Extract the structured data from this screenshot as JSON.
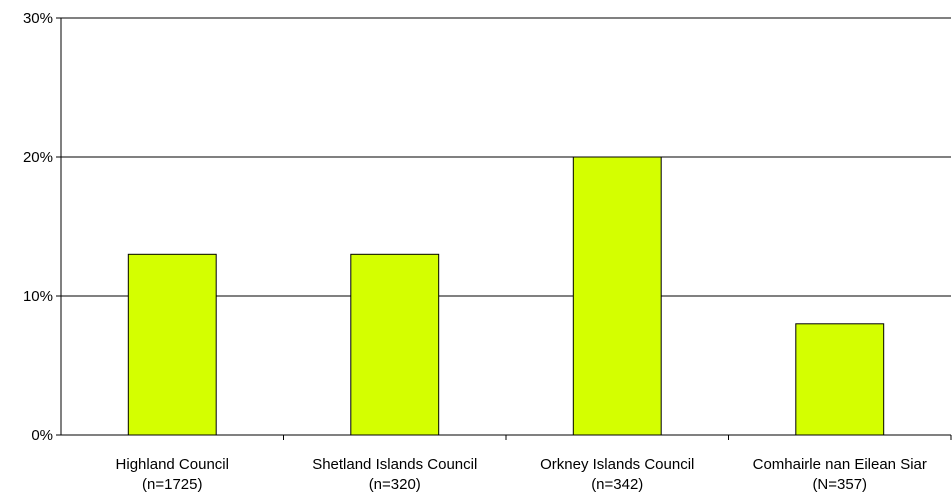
{
  "chart_data": {
    "type": "bar",
    "categories": [
      [
        "Highland Council",
        "(n=1725)"
      ],
      [
        "Shetland Islands Council",
        "(n=320)"
      ],
      [
        "Orkney Islands Council",
        "(n=342)"
      ],
      [
        "Comhairle nan Eilean Siar",
        "(N=357)"
      ]
    ],
    "values": [
      13,
      13,
      20,
      8
    ],
    "y_ticks": [
      "0%",
      "10%",
      "20%",
      "30%"
    ],
    "ylim": [
      0,
      30
    ],
    "title": "",
    "xlabel": "",
    "ylabel": "",
    "grid": true,
    "legend": "none",
    "colors": {
      "bar_fill": "#d4ff00",
      "bar_stroke": "#000000",
      "gridline": "#000000",
      "axis": "#000000"
    }
  }
}
